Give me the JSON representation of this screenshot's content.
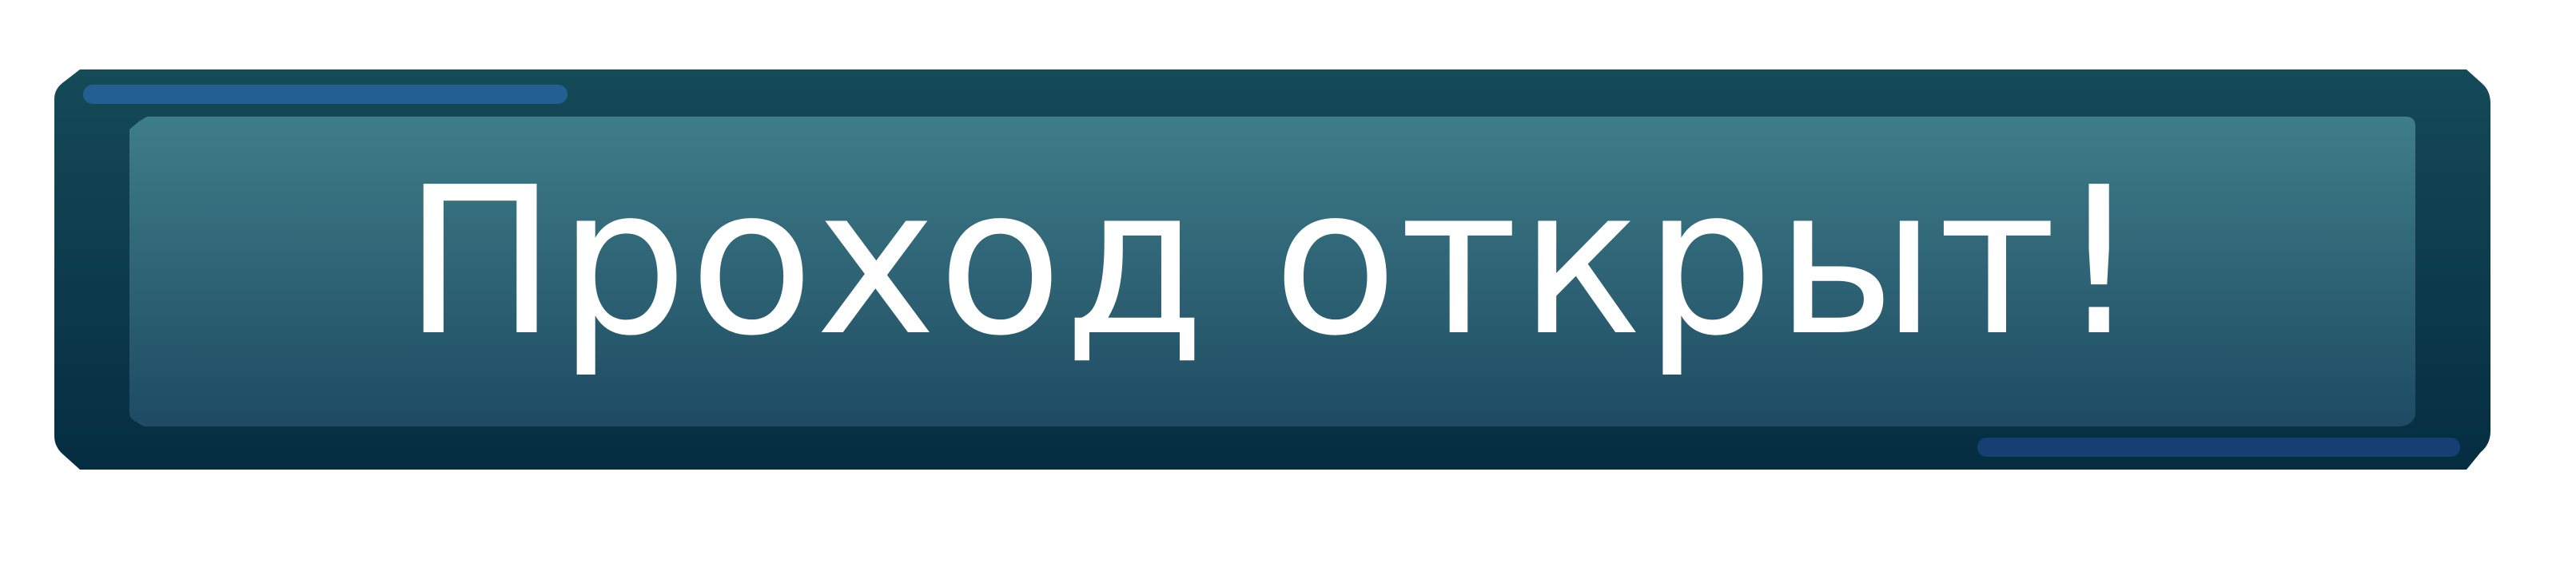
{
  "banner": {
    "message": "Проход открыт!"
  },
  "colors": {
    "frame_top": "#154a58",
    "frame_bottom": "#052d42",
    "panel_top": "#3f7d89",
    "panel_bottom": "#1e4b62",
    "accent_bar_top": "#245f93",
    "accent_bar_bottom": "#183f73",
    "text": "#ffffff"
  }
}
